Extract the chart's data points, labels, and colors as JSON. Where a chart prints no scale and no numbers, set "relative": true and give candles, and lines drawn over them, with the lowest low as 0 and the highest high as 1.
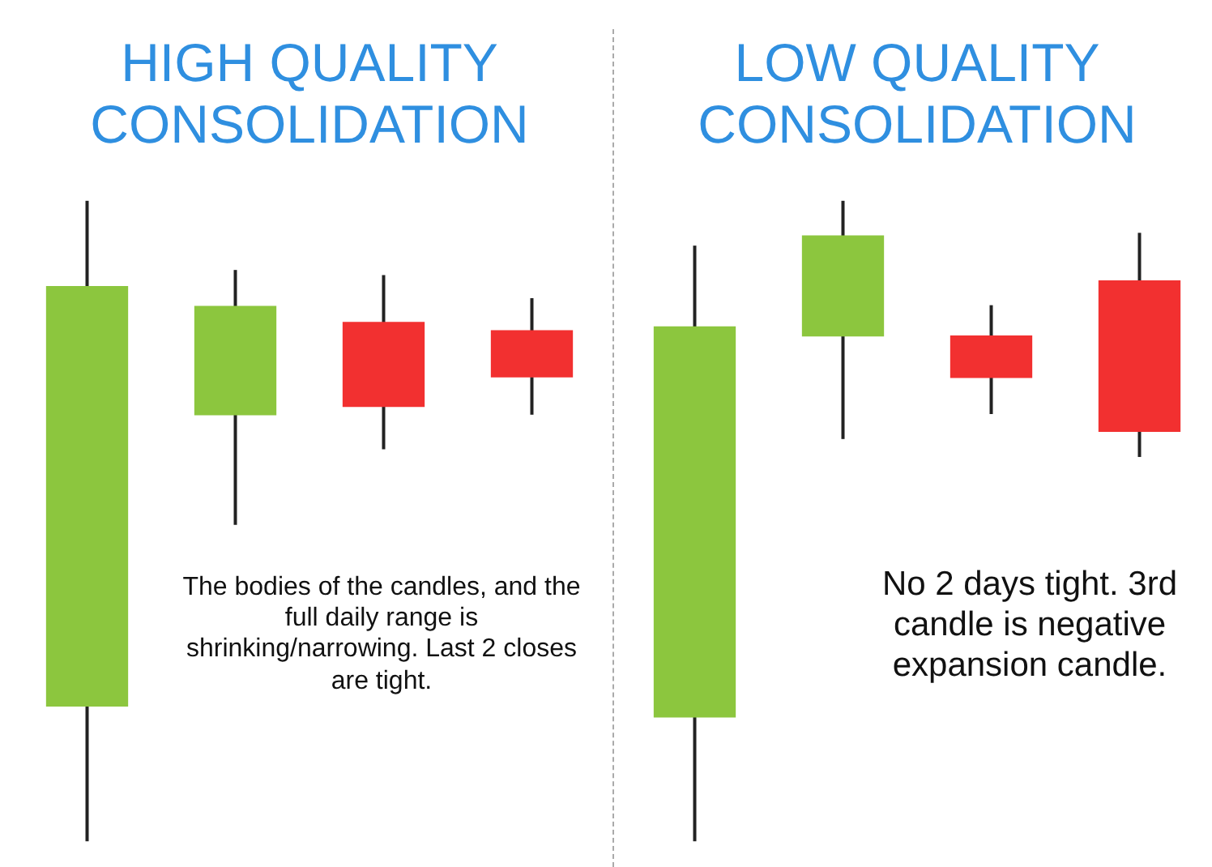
{
  "chart_data": [
    {
      "type": "candlestick",
      "title": "HIGH QUALITY CONSOLIDATION",
      "relative": true,
      "categories": [
        null,
        null,
        null,
        null
      ],
      "ohlc": [
        [
          0.211,
          1,
          0,
          0.866
        ],
        [
          0.666,
          0.892,
          0.494,
          0.835
        ],
        [
          0.81,
          0.884,
          0.612,
          0.679
        ],
        [
          0.797,
          0.848,
          0.666,
          0.725
        ]
      ],
      "colors": [
        "#8cc63e",
        "#8cc63e",
        "#f23030",
        "#f23030"
      ],
      "annotations": [
        "The bodies of the candles, and the full daily range is shrinking/narrowing. Last 2 closes are tight."
      ]
    },
    {
      "type": "candlestick",
      "title": "LOW QUALITY CONSOLIDATION",
      "relative": true,
      "categories": [
        null,
        null,
        null,
        null
      ],
      "ohlc": [
        [
          0.194,
          0.93,
          0,
          0.803
        ],
        [
          0.789,
          1,
          0.628,
          0.945
        ],
        [
          0.789,
          0.837,
          0.667,
          0.724
        ],
        [
          0.875,
          0.95,
          0.6,
          0.64
        ]
      ],
      "colors": [
        "#8cc63e",
        "#8cc63e",
        "#f23030",
        "#f23030"
      ],
      "annotations": [
        "No 2 days tight. 3rd candle is negative expansion candle."
      ]
    }
  ]
}
